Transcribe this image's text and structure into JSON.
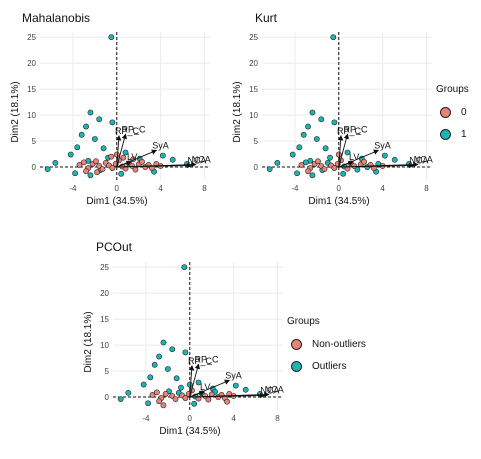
{
  "colors": {
    "group0": "#E8837A",
    "group1": "#1BB5B5",
    "outline": "#222222"
  },
  "legends": [
    {
      "id": "top",
      "title": "Groups",
      "items": [
        {
          "label": "0",
          "color": "#E8837A"
        },
        {
          "label": "1",
          "color": "#1BB5B5"
        }
      ]
    },
    {
      "id": "bottom",
      "title": "Groups",
      "items": [
        {
          "label": "Non-outliers",
          "color": "#E8837A"
        },
        {
          "label": "Outliers",
          "color": "#1BB5B5"
        }
      ]
    }
  ],
  "chart_data": [
    {
      "type": "scatter",
      "title": "Mahalanobis",
      "xlabel": "Dim1 (34.5%)",
      "ylabel": "Dim2 (18.1%)",
      "xlim": [
        -7,
        8.5
      ],
      "ylim": [
        -2.5,
        26
      ],
      "xticks": [
        -4,
        0,
        4,
        8
      ],
      "yticks": [
        0,
        5,
        10,
        15,
        20,
        25
      ],
      "grid": true,
      "variables": [
        {
          "label": "RP_C",
          "x": 0.2,
          "y": 6.0
        },
        {
          "label": "RP_C",
          "x": 0.8,
          "y": 6.3
        },
        {
          "label": "SyA",
          "x": 3.6,
          "y": 3.2
        },
        {
          "label": "NCA",
          "x": 6.8,
          "y": 0.3
        },
        {
          "label": "NCA",
          "x": 7.2,
          "y": 0.5
        },
        {
          "label": "LV",
          "x": 1.3,
          "y": 1.0
        }
      ],
      "outlier_points": [
        {
          "x": -0.5,
          "y": 25
        },
        {
          "x": -2.4,
          "y": 10.5
        },
        {
          "x": -1.6,
          "y": 9.2
        },
        {
          "x": -2.8,
          "y": 7.8
        },
        {
          "x": -3.2,
          "y": 6.2
        },
        {
          "x": -0.4,
          "y": 8.6
        },
        {
          "x": -2.0,
          "y": 5.4
        },
        {
          "x": -3.6,
          "y": 3.8
        },
        {
          "x": -4.2,
          "y": 2.4
        },
        {
          "x": -5.6,
          "y": 0.8
        },
        {
          "x": -6.3,
          "y": -0.4
        },
        {
          "x": -3.8,
          "y": -1.2
        },
        {
          "x": -2.4,
          "y": -1.6
        },
        {
          "x": 0.4,
          "y": -1.3
        },
        {
          "x": 3.4,
          "y": -0.9
        },
        {
          "x": 6.4,
          "y": 0.6
        },
        {
          "x": 5.1,
          "y": 1.4
        },
        {
          "x": 4.2,
          "y": 2.2
        },
        {
          "x": 2.1,
          "y": 1.6
        },
        {
          "x": 0.8,
          "y": 2.8
        },
        {
          "x": -1.2,
          "y": 3.6
        },
        {
          "x": -0.8,
          "y": 1.8
        },
        {
          "x": -2.6,
          "y": 1.2
        },
        {
          "x": -1.5,
          "y": -0.6
        }
      ],
      "inlier_points": [
        {
          "x": -3.4,
          "y": 0.4
        },
        {
          "x": -3.0,
          "y": 0.9
        },
        {
          "x": -2.6,
          "y": -0.2
        },
        {
          "x": -2.2,
          "y": 0.6
        },
        {
          "x": -1.9,
          "y": 1.1
        },
        {
          "x": -1.6,
          "y": 0.2
        },
        {
          "x": -1.3,
          "y": -0.4
        },
        {
          "x": -1.0,
          "y": 0.8
        },
        {
          "x": -0.7,
          "y": 0.3
        },
        {
          "x": -0.4,
          "y": -0.2
        },
        {
          "x": -0.1,
          "y": 0.6
        },
        {
          "x": 0.2,
          "y": 1.3
        },
        {
          "x": 0.5,
          "y": 0.1
        },
        {
          "x": 0.8,
          "y": -0.3
        },
        {
          "x": 1.1,
          "y": 0.7
        },
        {
          "x": 1.4,
          "y": 0.2
        },
        {
          "x": 1.7,
          "y": -0.5
        },
        {
          "x": 2.0,
          "y": 0.5
        },
        {
          "x": 2.3,
          "y": 1.0
        },
        {
          "x": 2.6,
          "y": 0.0
        },
        {
          "x": 2.9,
          "y": 0.4
        },
        {
          "x": 3.2,
          "y": -0.2
        },
        {
          "x": 3.6,
          "y": 0.6
        },
        {
          "x": 4.0,
          "y": 0.2
        },
        {
          "x": -0.5,
          "y": 2.0
        },
        {
          "x": 0.0,
          "y": 2.4
        },
        {
          "x": 0.6,
          "y": 1.8
        },
        {
          "x": -2.8,
          "y": -0.8
        },
        {
          "x": -1.8,
          "y": -1.0
        },
        {
          "x": 1.5,
          "y": 1.5
        }
      ]
    },
    {
      "type": "scatter",
      "title": "Kurt",
      "xlabel": "Dim1 (34.5%)",
      "ylabel": "Dim2 (18.1%)",
      "xlim": [
        -7,
        8.5
      ],
      "ylim": [
        -2.5,
        26
      ],
      "xticks": [
        -4,
        0,
        4,
        8
      ],
      "yticks": [
        0,
        5,
        10,
        15,
        20,
        25
      ],
      "grid": true,
      "variables": [
        {
          "label": "RP_C",
          "x": 0.2,
          "y": 6.0
        },
        {
          "label": "RP_C",
          "x": 0.8,
          "y": 6.3
        },
        {
          "label": "SyA",
          "x": 3.6,
          "y": 3.2
        },
        {
          "label": "NCA",
          "x": 6.8,
          "y": 0.3
        },
        {
          "label": "NCA",
          "x": 7.2,
          "y": 0.5
        },
        {
          "label": "LV",
          "x": 1.3,
          "y": 1.0
        }
      ],
      "outlier_points": [
        {
          "x": -0.5,
          "y": 25
        },
        {
          "x": -2.4,
          "y": 10.5
        },
        {
          "x": -1.6,
          "y": 9.2
        },
        {
          "x": -2.8,
          "y": 7.8
        },
        {
          "x": -3.2,
          "y": 6.2
        },
        {
          "x": -0.4,
          "y": 8.6
        },
        {
          "x": -2.0,
          "y": 5.4
        },
        {
          "x": -3.6,
          "y": 3.8
        },
        {
          "x": -4.2,
          "y": 2.4
        },
        {
          "x": -5.6,
          "y": 0.8
        },
        {
          "x": -6.3,
          "y": -0.4
        },
        {
          "x": -3.8,
          "y": -1.2
        },
        {
          "x": -2.4,
          "y": -1.6
        },
        {
          "x": 0.4,
          "y": -1.3
        },
        {
          "x": 3.4,
          "y": -0.9
        },
        {
          "x": 6.4,
          "y": 0.6
        },
        {
          "x": 5.1,
          "y": 1.4
        },
        {
          "x": 4.2,
          "y": 2.2
        },
        {
          "x": 2.1,
          "y": 1.6
        },
        {
          "x": 0.8,
          "y": 2.8
        },
        {
          "x": -1.2,
          "y": 3.6
        },
        {
          "x": -0.8,
          "y": 1.8
        },
        {
          "x": -2.6,
          "y": 1.2
        },
        {
          "x": -1.5,
          "y": -0.6
        },
        {
          "x": -1.0,
          "y": 0.8
        },
        {
          "x": 0.5,
          "y": 0.1
        },
        {
          "x": 1.7,
          "y": -0.5
        },
        {
          "x": 2.6,
          "y": 0.0
        },
        {
          "x": -3.0,
          "y": 0.9
        },
        {
          "x": 3.6,
          "y": 0.6
        }
      ],
      "inlier_points": [
        {
          "x": -3.4,
          "y": 0.4
        },
        {
          "x": -2.6,
          "y": -0.2
        },
        {
          "x": -2.2,
          "y": 0.6
        },
        {
          "x": -1.9,
          "y": 1.1
        },
        {
          "x": -1.6,
          "y": 0.2
        },
        {
          "x": -1.3,
          "y": -0.4
        },
        {
          "x": -0.7,
          "y": 0.3
        },
        {
          "x": -0.4,
          "y": -0.2
        },
        {
          "x": -0.1,
          "y": 0.6
        },
        {
          "x": 0.2,
          "y": 1.3
        },
        {
          "x": 0.8,
          "y": -0.3
        },
        {
          "x": 1.1,
          "y": 0.7
        },
        {
          "x": 1.4,
          "y": 0.2
        },
        {
          "x": 2.0,
          "y": 0.5
        },
        {
          "x": 2.3,
          "y": 1.0
        },
        {
          "x": 2.9,
          "y": 0.4
        },
        {
          "x": 3.2,
          "y": -0.2
        },
        {
          "x": 4.0,
          "y": 0.2
        },
        {
          "x": 0.0,
          "y": 2.4
        },
        {
          "x": -2.8,
          "y": -0.8
        }
      ]
    },
    {
      "type": "scatter",
      "title": "PCOut",
      "xlabel": "Dim1 (34.5%)",
      "ylabel": "Dim2 (18.1%)",
      "xlim": [
        -7,
        8.5
      ],
      "ylim": [
        -2.5,
        26
      ],
      "xticks": [
        -4,
        0,
        4,
        8
      ],
      "yticks": [
        0,
        5,
        10,
        15,
        20,
        25
      ],
      "grid": true,
      "variables": [
        {
          "label": "RP_C",
          "x": 0.2,
          "y": 6.0
        },
        {
          "label": "RP_C",
          "x": 0.8,
          "y": 6.3
        },
        {
          "label": "SyA",
          "x": 3.6,
          "y": 3.2
        },
        {
          "label": "NCA",
          "x": 6.8,
          "y": 0.3
        },
        {
          "label": "NCA",
          "x": 7.2,
          "y": 0.5
        },
        {
          "label": "LV",
          "x": 1.3,
          "y": 1.0
        }
      ],
      "outlier_points": [
        {
          "x": -0.5,
          "y": 25
        },
        {
          "x": -2.4,
          "y": 10.5
        },
        {
          "x": -1.6,
          "y": 9.2
        },
        {
          "x": -2.8,
          "y": 7.8
        },
        {
          "x": -3.2,
          "y": 6.2
        },
        {
          "x": -0.4,
          "y": 8.6
        },
        {
          "x": -2.0,
          "y": 5.4
        },
        {
          "x": -3.6,
          "y": 3.8
        },
        {
          "x": -4.2,
          "y": 2.4
        },
        {
          "x": -5.6,
          "y": 0.8
        },
        {
          "x": -6.3,
          "y": -0.4
        },
        {
          "x": -3.8,
          "y": -1.2
        },
        {
          "x": 0.4,
          "y": -1.3
        },
        {
          "x": 6.4,
          "y": 0.6
        },
        {
          "x": 5.1,
          "y": 1.4
        },
        {
          "x": 4.2,
          "y": 2.2
        },
        {
          "x": 2.1,
          "y": 1.6
        },
        {
          "x": 0.8,
          "y": 2.8
        },
        {
          "x": -1.2,
          "y": 3.6
        },
        {
          "x": -0.8,
          "y": 1.8
        },
        {
          "x": -1.0,
          "y": 0.8
        },
        {
          "x": 0.5,
          "y": 0.1
        },
        {
          "x": -1.9,
          "y": 1.1
        },
        {
          "x": 1.1,
          "y": 0.7
        },
        {
          "x": 2.3,
          "y": 1.0
        },
        {
          "x": 0.0,
          "y": 2.4
        }
      ],
      "inlier_points": [
        {
          "x": -3.4,
          "y": 0.4
        },
        {
          "x": -3.0,
          "y": 0.9
        },
        {
          "x": -2.6,
          "y": -0.2
        },
        {
          "x": -2.2,
          "y": 0.6
        },
        {
          "x": -1.6,
          "y": 0.2
        },
        {
          "x": -1.3,
          "y": -0.4
        },
        {
          "x": -0.7,
          "y": 0.3
        },
        {
          "x": -0.4,
          "y": -0.2
        },
        {
          "x": -0.1,
          "y": 0.6
        },
        {
          "x": 0.2,
          "y": 1.3
        },
        {
          "x": 0.8,
          "y": -0.3
        },
        {
          "x": 1.4,
          "y": 0.2
        },
        {
          "x": 1.7,
          "y": -0.5
        },
        {
          "x": 2.0,
          "y": 0.5
        },
        {
          "x": 2.6,
          "y": 0.0
        },
        {
          "x": 2.9,
          "y": 0.4
        },
        {
          "x": 3.2,
          "y": -0.2
        },
        {
          "x": 3.6,
          "y": 0.6
        },
        {
          "x": 4.0,
          "y": 0.2
        },
        {
          "x": -2.8,
          "y": -0.8
        },
        {
          "x": -2.4,
          "y": -1.6
        },
        {
          "x": 3.4,
          "y": -0.9
        }
      ]
    }
  ]
}
